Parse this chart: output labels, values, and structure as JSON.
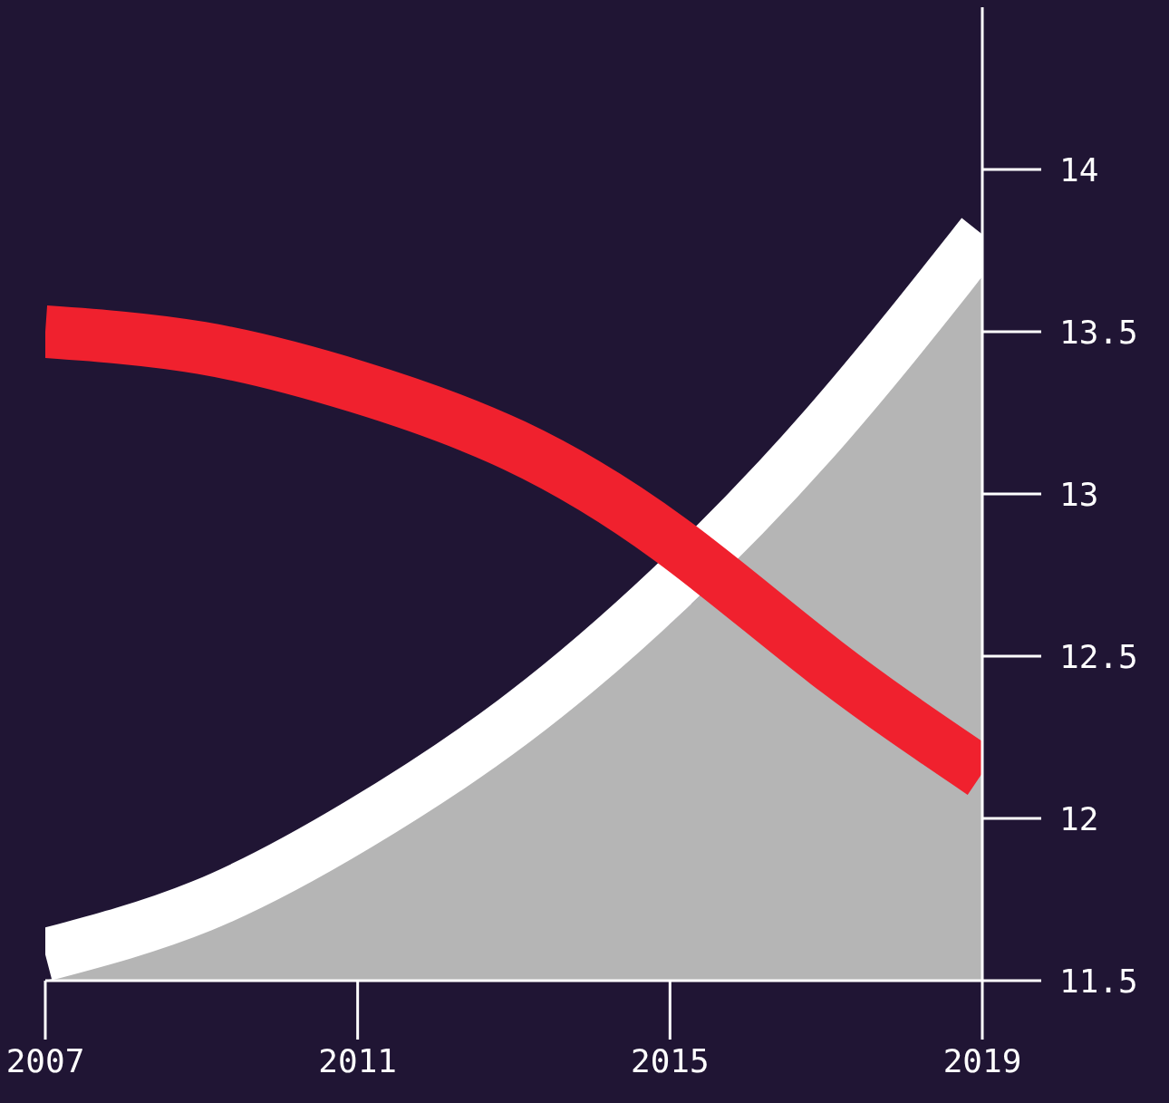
{
  "chart_data": {
    "type": "line",
    "x": [
      2007,
      2009,
      2011,
      2013,
      2015,
      2017,
      2019
    ],
    "series": [
      {
        "type": "area",
        "color": "#b5b5b5",
        "values": [
          11.5,
          11.65,
          11.9,
          12.22,
          12.6,
          13.1,
          13.67
        ]
      },
      {
        "color": "#ffffff",
        "values": [
          11.58,
          11.73,
          11.98,
          12.3,
          12.71,
          13.21,
          13.8
        ]
      },
      {
        "color": "#f0212e",
        "values": [
          13.5,
          13.45,
          13.33,
          13.15,
          12.86,
          12.48,
          12.14
        ]
      }
    ],
    "xlim": [
      2007,
      2019
    ],
    "xticks": [
      2007,
      2011,
      2015,
      2019
    ],
    "ylim": [
      11.5,
      14.5
    ],
    "yticks": [
      11.5,
      12,
      12.5,
      13,
      13.5,
      14
    ],
    "marker": "none",
    "line_style": "solid"
  }
}
